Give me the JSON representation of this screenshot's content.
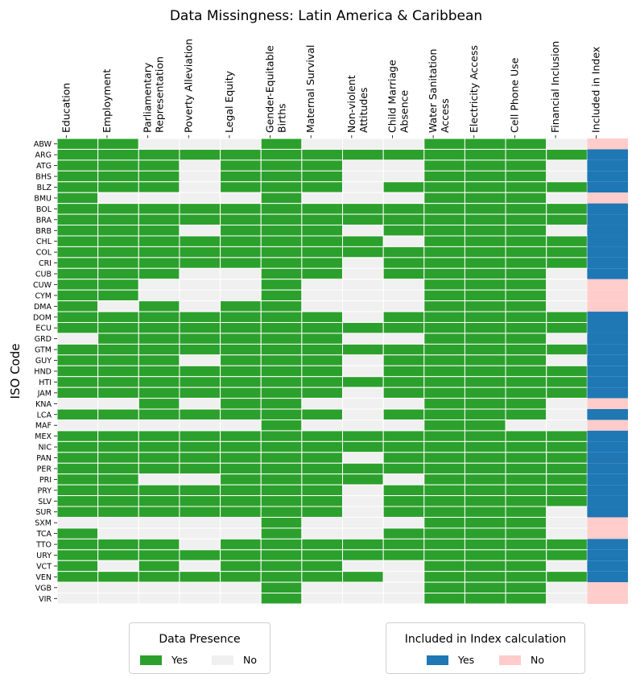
{
  "chart_data": {
    "type": "heatmap",
    "title": "Data Missingness: Latin America & Caribbean",
    "xlabel": "",
    "ylabel": "ISO Code",
    "columns": [
      "Education",
      "Employment",
      "Parliamentary\nRepresentation",
      "Poverty Alleviation",
      "Legal Equity",
      "Gender-Equitable\nBirths",
      "Maternal Survival",
      "Non-violent\nAttitudes",
      "Child Marriage\nAbsence",
      "Water Sanitation\nAccess",
      "Electricity Access",
      "Cell Phone Use",
      "Financial Inclusion",
      "Included in Index"
    ],
    "rows": [
      "ABW",
      "ARG",
      "ATG",
      "BHS",
      "BLZ",
      "BMU",
      "BOL",
      "BRA",
      "BRB",
      "CHL",
      "COL",
      "CRI",
      "CUB",
      "CUW",
      "CYM",
      "DMA",
      "DOM",
      "ECU",
      "GRD",
      "GTM",
      "GUY",
      "HND",
      "HTI",
      "JAM",
      "KNA",
      "LCA",
      "MAF",
      "MEX",
      "NIC",
      "PAN",
      "PER",
      "PRI",
      "PRY",
      "SLV",
      "SUR",
      "SXM",
      "TCA",
      "TTO",
      "URY",
      "VCT",
      "VEN",
      "VGB",
      "VIR"
    ],
    "values": [
      [
        1,
        1,
        0,
        0,
        0,
        1,
        0,
        0,
        0,
        1,
        1,
        1,
        0,
        0
      ],
      [
        1,
        1,
        1,
        1,
        1,
        1,
        1,
        1,
        1,
        1,
        1,
        1,
        1,
        1
      ],
      [
        1,
        1,
        1,
        0,
        1,
        1,
        1,
        0,
        0,
        1,
        1,
        1,
        0,
        1
      ],
      [
        1,
        1,
        1,
        0,
        1,
        1,
        1,
        0,
        0,
        1,
        1,
        1,
        0,
        1
      ],
      [
        1,
        1,
        1,
        0,
        1,
        1,
        1,
        0,
        1,
        1,
        1,
        1,
        1,
        1
      ],
      [
        1,
        0,
        0,
        0,
        0,
        1,
        0,
        0,
        0,
        1,
        1,
        1,
        0,
        0
      ],
      [
        1,
        1,
        1,
        1,
        1,
        1,
        1,
        1,
        1,
        1,
        1,
        1,
        1,
        1
      ],
      [
        1,
        1,
        1,
        1,
        1,
        1,
        1,
        1,
        1,
        1,
        1,
        1,
        1,
        1
      ],
      [
        1,
        1,
        1,
        0,
        1,
        1,
        1,
        0,
        1,
        1,
        1,
        1,
        0,
        1
      ],
      [
        1,
        1,
        1,
        1,
        1,
        1,
        1,
        1,
        0,
        1,
        1,
        1,
        1,
        1
      ],
      [
        1,
        1,
        1,
        1,
        1,
        1,
        1,
        1,
        1,
        1,
        1,
        1,
        1,
        1
      ],
      [
        1,
        1,
        1,
        1,
        1,
        1,
        1,
        0,
        1,
        1,
        1,
        1,
        1,
        1
      ],
      [
        1,
        1,
        1,
        0,
        0,
        1,
        1,
        0,
        1,
        1,
        1,
        1,
        0,
        1
      ],
      [
        1,
        1,
        0,
        0,
        0,
        1,
        0,
        0,
        0,
        1,
        1,
        1,
        0,
        0
      ],
      [
        1,
        1,
        0,
        0,
        0,
        1,
        0,
        0,
        0,
        1,
        1,
        1,
        0,
        0
      ],
      [
        1,
        0,
        1,
        0,
        1,
        1,
        0,
        0,
        0,
        1,
        1,
        1,
        0,
        0
      ],
      [
        1,
        1,
        1,
        1,
        1,
        1,
        1,
        0,
        1,
        1,
        1,
        1,
        1,
        1
      ],
      [
        1,
        1,
        1,
        1,
        1,
        1,
        1,
        1,
        1,
        1,
        1,
        1,
        1,
        1
      ],
      [
        0,
        1,
        1,
        1,
        1,
        1,
        1,
        0,
        0,
        1,
        1,
        1,
        0,
        1
      ],
      [
        1,
        1,
        1,
        1,
        1,
        1,
        1,
        1,
        1,
        1,
        1,
        1,
        1,
        1
      ],
      [
        1,
        1,
        1,
        0,
        1,
        1,
        1,
        0,
        1,
        1,
        1,
        1,
        0,
        1
      ],
      [
        1,
        1,
        1,
        1,
        1,
        1,
        1,
        0,
        1,
        1,
        1,
        1,
        1,
        1
      ],
      [
        1,
        1,
        1,
        1,
        1,
        1,
        1,
        1,
        1,
        1,
        1,
        1,
        1,
        1
      ],
      [
        1,
        1,
        1,
        1,
        1,
        1,
        1,
        0,
        1,
        1,
        1,
        1,
        1,
        1
      ],
      [
        0,
        0,
        1,
        0,
        1,
        1,
        0,
        0,
        0,
        1,
        1,
        1,
        0,
        0
      ],
      [
        1,
        1,
        1,
        1,
        1,
        1,
        1,
        0,
        1,
        1,
        1,
        1,
        0,
        1
      ],
      [
        0,
        0,
        0,
        0,
        0,
        1,
        0,
        0,
        0,
        1,
        1,
        0,
        0,
        0
      ],
      [
        1,
        1,
        1,
        1,
        1,
        1,
        1,
        1,
        1,
        1,
        1,
        1,
        1,
        1
      ],
      [
        1,
        1,
        1,
        1,
        1,
        1,
        1,
        1,
        1,
        1,
        1,
        1,
        1,
        1
      ],
      [
        1,
        1,
        1,
        1,
        1,
        1,
        1,
        0,
        1,
        1,
        1,
        1,
        1,
        1
      ],
      [
        1,
        1,
        1,
        1,
        1,
        1,
        1,
        1,
        1,
        1,
        1,
        1,
        1,
        1
      ],
      [
        1,
        1,
        0,
        0,
        1,
        1,
        1,
        1,
        0,
        1,
        1,
        1,
        1,
        1
      ],
      [
        1,
        1,
        1,
        1,
        1,
        1,
        1,
        0,
        1,
        1,
        1,
        1,
        1,
        1
      ],
      [
        1,
        1,
        1,
        1,
        1,
        1,
        1,
        0,
        1,
        1,
        1,
        1,
        1,
        1
      ],
      [
        1,
        1,
        1,
        1,
        1,
        1,
        1,
        0,
        1,
        1,
        1,
        1,
        0,
        1
      ],
      [
        0,
        0,
        0,
        0,
        0,
        1,
        0,
        0,
        0,
        1,
        1,
        1,
        0,
        0
      ],
      [
        1,
        0,
        0,
        0,
        0,
        1,
        0,
        0,
        1,
        1,
        1,
        1,
        0,
        0
      ],
      [
        1,
        1,
        1,
        0,
        1,
        1,
        1,
        1,
        1,
        1,
        1,
        1,
        1,
        1
      ],
      [
        1,
        1,
        1,
        1,
        1,
        1,
        1,
        1,
        1,
        1,
        1,
        1,
        1,
        1
      ],
      [
        1,
        0,
        1,
        0,
        1,
        1,
        1,
        0,
        0,
        1,
        1,
        1,
        0,
        1
      ],
      [
        1,
        1,
        1,
        1,
        1,
        1,
        1,
        1,
        0,
        1,
        1,
        1,
        1,
        1
      ],
      [
        0,
        0,
        0,
        0,
        0,
        1,
        0,
        0,
        0,
        1,
        1,
        1,
        0,
        0
      ],
      [
        0,
        0,
        0,
        0,
        0,
        1,
        0,
        0,
        0,
        1,
        1,
        1,
        0,
        0
      ]
    ],
    "value_labels": {
      "1": "Yes",
      "0": "No"
    },
    "colors": {
      "presence_yes": "#2ca02c",
      "presence_no": "#f0f0f0",
      "index_yes": "#1f77b4",
      "index_no": "#ffcccc"
    },
    "legends": [
      {
        "title": "Data Presence",
        "items": [
          {
            "label": "Yes",
            "color": "#2ca02c"
          },
          {
            "label": "No",
            "color": "#f0f0f0"
          }
        ],
        "placement": "bottom-left"
      },
      {
        "title": "Included in Index calculation",
        "items": [
          {
            "label": "Yes",
            "color": "#1f77b4"
          },
          {
            "label": "No",
            "color": "#ffcccc"
          }
        ],
        "placement": "bottom-right"
      }
    ]
  }
}
